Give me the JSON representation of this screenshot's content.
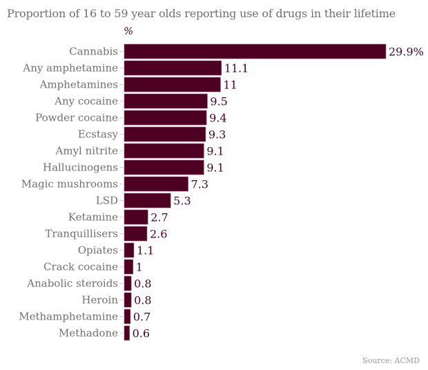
{
  "chart_data": {
    "type": "bar",
    "orientation": "horizontal",
    "title": "Proportion of 16 to 59 year olds reporting use of drugs in their lifetime",
    "unit_label": "%",
    "xlabel": "",
    "ylabel": "",
    "xlim": [
      0,
      29.9
    ],
    "grid": false,
    "legend": "none",
    "bar_color": "#4d0022",
    "label_color": "#4d0022",
    "categories": [
      "Cannabis",
      "Any amphetamine",
      "Amphetamines",
      "Any cocaine",
      "Powder cocaine",
      "Ecstasy",
      "Amyl nitrite",
      "Hallucinogens",
      "Magic mushrooms",
      "LSD",
      "Ketamine",
      "Tranquillisers",
      "Opiates",
      "Crack cocaine",
      "Anabolic steroids",
      "Heroin",
      "Methamphetamine",
      "Methadone"
    ],
    "values": [
      29.9,
      11.1,
      11,
      9.5,
      9.4,
      9.3,
      9.1,
      9.1,
      7.3,
      5.3,
      2.7,
      2.6,
      1.1,
      1,
      0.8,
      0.8,
      0.7,
      0.6
    ],
    "data_labels": [
      "29.9%",
      "11.1",
      "11",
      "9.5",
      "9.4",
      "9.3",
      "9.1",
      "9.1",
      "7.3",
      "5.3",
      "2.7",
      "2.6",
      "1.1",
      "1",
      "0.8",
      "0.8",
      "0.7",
      "0.6"
    ],
    "source": "Source: ACMD"
  }
}
